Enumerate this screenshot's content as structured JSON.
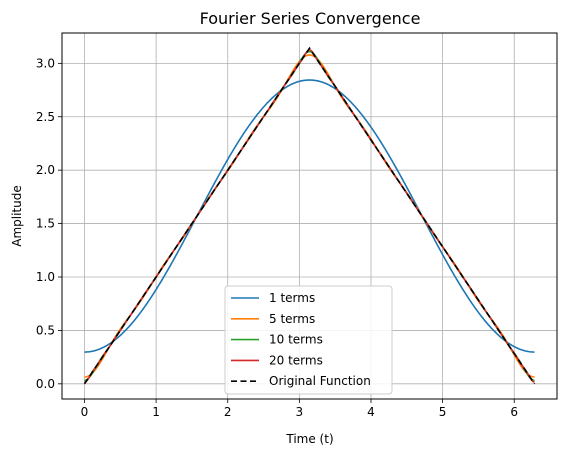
{
  "chart_data": {
    "type": "line",
    "title": "Fourier Series Convergence",
    "xlabel": "Time (t)",
    "ylabel": "Amplitude",
    "xlim": [
      -0.314,
      6.597
    ],
    "ylim": [
      -0.142,
      3.284
    ],
    "xticks": [
      0,
      1,
      2,
      3,
      4,
      5,
      6
    ],
    "xtick_labels": [
      "0",
      "1",
      "2",
      "3",
      "4",
      "5",
      "6"
    ],
    "yticks": [
      0.0,
      0.5,
      1.0,
      1.5,
      2.0,
      2.5,
      3.0
    ],
    "ytick_labels": [
      "0.0",
      "0.5",
      "1.0",
      "1.5",
      "2.0",
      "2.5",
      "3.0"
    ],
    "grid": true,
    "legend_position": "lower-center",
    "x_range": [
      0,
      6.2832
    ],
    "series": [
      {
        "name": "1 terms",
        "terms": 1,
        "color": "#1f77b4",
        "style": "solid"
      },
      {
        "name": "5 terms",
        "terms": 5,
        "color": "#ff7f0e",
        "style": "solid"
      },
      {
        "name": "10 terms",
        "terms": 10,
        "color": "#2ca02c",
        "style": "solid"
      },
      {
        "name": "20 terms",
        "terms": 20,
        "color": "#d62728",
        "style": "solid"
      },
      {
        "name": "Original Function",
        "terms": null,
        "color": "#000000",
        "style": "dashed"
      }
    ]
  }
}
